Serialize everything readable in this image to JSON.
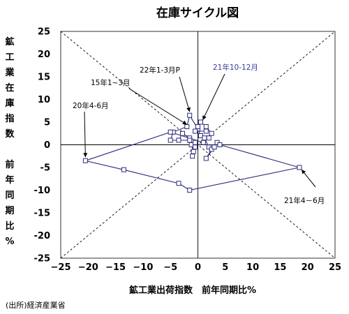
{
  "chart_data": {
    "type": "scatter",
    "title": "在庫サイクル図",
    "xlabel": "鉱工業出荷指数　前年同期比%",
    "ylabel": [
      "鉱",
      "工",
      "業",
      "在",
      "庫",
      "指",
      "数",
      "",
      "前",
      "年",
      "同",
      "期",
      "比",
      "%"
    ],
    "xlim": [
      -25,
      25
    ],
    "ylim": [
      -25,
      25
    ],
    "xticks": [
      "−25",
      "−20",
      "−15",
      "−10",
      "−5",
      "0",
      "5",
      "10",
      "15",
      "20",
      "25"
    ],
    "yticks": [
      "25",
      "20",
      "15",
      "10",
      "5",
      "0",
      "-5",
      "-10",
      "-15",
      "-20",
      "-25"
    ],
    "grid": false,
    "series_color": "#2b2b7a",
    "reference_lines": "diagonals y=x and y=-x (dashed)",
    "points": [
      [
        -3.5,
        1.0
      ],
      [
        -2.8,
        2.5
      ],
      [
        -1.5,
        1.5
      ],
      [
        -1.2,
        0.0
      ],
      [
        -0.8,
        -1.5
      ],
      [
        -0.5,
        0.5
      ],
      [
        -1.0,
        -2.5
      ],
      [
        -0.5,
        -0.5
      ],
      [
        -1.5,
        1.0
      ],
      [
        -5.0,
        1.0
      ],
      [
        -4.5,
        2.8
      ],
      [
        -2.0,
        4.0
      ],
      [
        -1.5,
        6.5
      ],
      [
        0.0,
        3.5
      ],
      [
        0.5,
        2.0
      ],
      [
        1.2,
        1.5
      ],
      [
        2.0,
        -0.5
      ],
      [
        2.5,
        -1.0
      ],
      [
        1.5,
        -3.0
      ],
      [
        3.0,
        -0.5
      ],
      [
        3.5,
        0.5
      ],
      [
        4.0,
        0.0
      ],
      [
        18.5,
        -5.0
      ],
      [
        -1.5,
        -10.0
      ],
      [
        -3.5,
        -8.5
      ],
      [
        -13.5,
        -5.5
      ],
      [
        -20.5,
        -3.5
      ],
      [
        -5.0,
        2.8
      ],
      [
        1.0,
        0.5
      ],
      [
        2.0,
        1.5
      ],
      [
        2.5,
        2.5
      ],
      [
        1.5,
        4.0
      ],
      [
        0.5,
        5.0
      ],
      [
        0.0,
        4.0
      ],
      [
        -0.5,
        3.0
      ],
      [
        1.5,
        3.0
      ]
    ],
    "annotations": [
      {
        "text": "15年1~3月",
        "target": [
          -2.0,
          4.0
        ]
      },
      {
        "text": "22年1-3月P",
        "target": [
          -1.5,
          6.5
        ]
      },
      {
        "text": "21年10-12月",
        "target": [
          0.5,
          5.0
        ]
      },
      {
        "text": "20年4-6月",
        "target": [
          -20.5,
          -3.5
        ]
      },
      {
        "text": "21年4－6月",
        "target": [
          18.5,
          -5.0
        ]
      }
    ]
  },
  "source": "(出所)経済産業省"
}
